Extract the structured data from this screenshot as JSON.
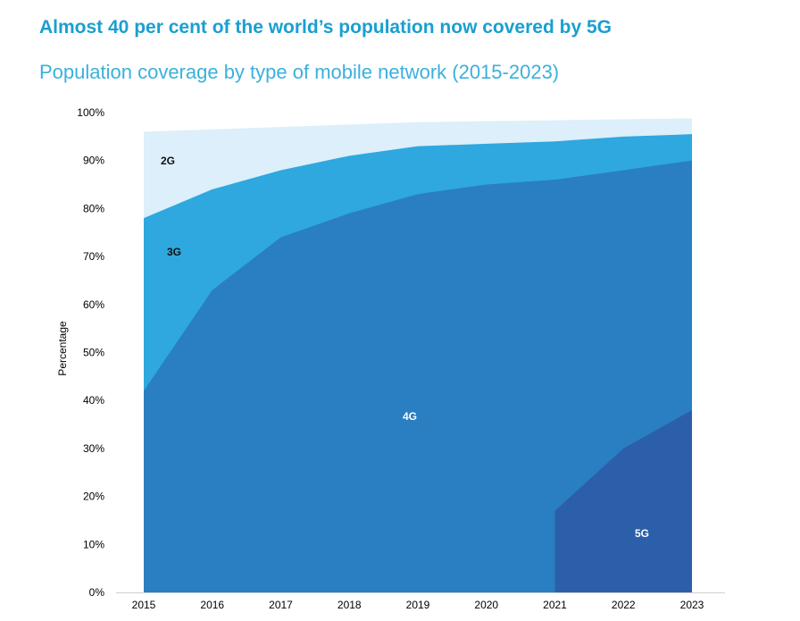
{
  "title": "Almost 40 per cent of the world’s population now covered by 5G",
  "subtitle": "Population coverage by type of mobile network (2015-2023)",
  "chart_data": {
    "type": "area",
    "stacked": false,
    "x": [
      "2015",
      "2016",
      "2017",
      "2018",
      "2019",
      "2020",
      "2021",
      "2022",
      "2023"
    ],
    "ylabel": "Percentage",
    "xlabel": "",
    "ylim": [
      0,
      100
    ],
    "yticks": [
      "0%",
      "10%",
      "20%",
      "30%",
      "40%",
      "50%",
      "60%",
      "70%",
      "80%",
      "90%",
      "100%"
    ],
    "grid": false,
    "legend": "none",
    "series": [
      {
        "name": "2G",
        "color": "#dceffa",
        "values": [
          96,
          96.5,
          97,
          97.5,
          98,
          98.2,
          98.4,
          98.6,
          98.8
        ]
      },
      {
        "name": "3G",
        "color": "#2ea8df",
        "values": [
          78,
          84,
          88,
          91,
          93,
          93.5,
          94,
          95,
          95.5
        ]
      },
      {
        "name": "4G",
        "color": "#2a7ec2",
        "values": [
          42,
          63,
          74,
          79,
          83,
          85,
          86,
          88,
          90
        ]
      },
      {
        "name": "5G",
        "color": "#2c5faa",
        "values": [
          null,
          null,
          null,
          null,
          null,
          null,
          17,
          30,
          38
        ]
      }
    ],
    "labels": [
      {
        "text": "2G",
        "color": "#111111"
      },
      {
        "text": "3G",
        "color": "#111111"
      },
      {
        "text": "4G",
        "color": "#ffffff"
      },
      {
        "text": "5G",
        "color": "#ffffff"
      }
    ]
  }
}
